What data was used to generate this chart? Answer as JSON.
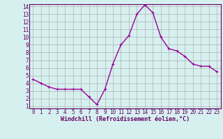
{
  "x": [
    0,
    1,
    2,
    3,
    4,
    5,
    6,
    7,
    8,
    9,
    10,
    11,
    12,
    13,
    14,
    15,
    16,
    17,
    18,
    19,
    20,
    21,
    22,
    23
  ],
  "y": [
    4.5,
    4.0,
    3.5,
    3.2,
    3.2,
    3.2,
    3.2,
    2.2,
    1.2,
    3.2,
    6.5,
    9.0,
    10.2,
    13.0,
    14.2,
    13.2,
    10.0,
    8.5,
    8.2,
    7.5,
    6.5,
    6.2,
    6.2,
    5.5
  ],
  "line_color": "#990099",
  "marker": "+",
  "marker_size": 3,
  "bg_color": "#d6f0f0",
  "grid_color": "#b0b0b0",
  "xlabel": "Windchill (Refroidissement éolien,°C)",
  "xlabel_color": "#660066",
  "tick_color": "#660066",
  "ylim": [
    1,
    14
  ],
  "xlim": [
    -0.5,
    23.5
  ],
  "yticks": [
    1,
    2,
    3,
    4,
    5,
    6,
    7,
    8,
    9,
    10,
    11,
    12,
    13,
    14
  ],
  "xticks": [
    0,
    1,
    2,
    3,
    4,
    5,
    6,
    7,
    8,
    9,
    10,
    11,
    12,
    13,
    14,
    15,
    16,
    17,
    18,
    19,
    20,
    21,
    22,
    23
  ],
  "spine_color": "#660066",
  "tick_fontsize": 5.5,
  "xlabel_fontsize": 6.0,
  "linewidth": 1.0,
  "markeredgewidth": 0.8
}
